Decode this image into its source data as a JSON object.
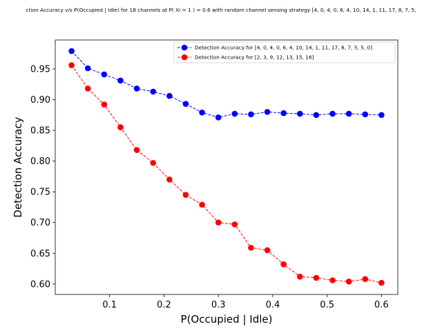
{
  "chart_data": {
    "type": "line",
    "title": "ction Accuracy v/s P(Occupied | Idle) for 18 channels at P( Xi = 1 ) = 0.6 with random channel sensing strategy [4, 0, 4, 0, 6, 4, 10, 14, 1, 11, 17, 8, 7, 5,",
    "xlabel": "P(Occupied | Idle)",
    "ylabel": "Detection Accuracy",
    "xlim": [
      0.0,
      0.63
    ],
    "ylim": [
      0.583,
      0.997
    ],
    "xticks": [
      0.1,
      0.2,
      0.3,
      0.4,
      0.5,
      0.6
    ],
    "xtick_labels": [
      "0.1",
      "0.2",
      "0.3",
      "0.4",
      "0.5",
      "0.6"
    ],
    "yticks": [
      0.6,
      0.65,
      0.7,
      0.75,
      0.8,
      0.85,
      0.9,
      0.95
    ],
    "ytick_labels": [
      "0.60",
      "0.65",
      "0.70",
      "0.75",
      "0.80",
      "0.85",
      "0.90",
      "0.95"
    ],
    "grid": false,
    "legend_position": "top-right",
    "x": [
      0.03,
      0.06,
      0.09,
      0.12,
      0.15,
      0.18,
      0.21,
      0.24,
      0.27,
      0.3,
      0.33,
      0.36,
      0.39,
      0.42,
      0.45,
      0.48,
      0.51,
      0.54,
      0.57,
      0.6
    ],
    "series": [
      {
        "name": "Detection Accuracy for [4, 0, 4, 0, 6, 4, 10, 14, 1, 11, 17, 8, 7, 5, 5, 0]",
        "color": "#0000ff",
        "values": [
          0.979,
          0.951,
          0.941,
          0.931,
          0.918,
          0.913,
          0.906,
          0.893,
          0.879,
          0.871,
          0.877,
          0.876,
          0.88,
          0.878,
          0.877,
          0.875,
          0.877,
          0.877,
          0.876,
          0.875
        ]
      },
      {
        "name": "Detection Accuracy for [2, 3, 9, 12, 13, 15, 16]",
        "color": "#ff0000",
        "values": [
          0.956,
          0.918,
          0.892,
          0.855,
          0.818,
          0.797,
          0.77,
          0.745,
          0.729,
          0.7,
          0.697,
          0.659,
          0.655,
          0.632,
          0.612,
          0.61,
          0.606,
          0.604,
          0.608,
          0.602
        ]
      }
    ]
  }
}
